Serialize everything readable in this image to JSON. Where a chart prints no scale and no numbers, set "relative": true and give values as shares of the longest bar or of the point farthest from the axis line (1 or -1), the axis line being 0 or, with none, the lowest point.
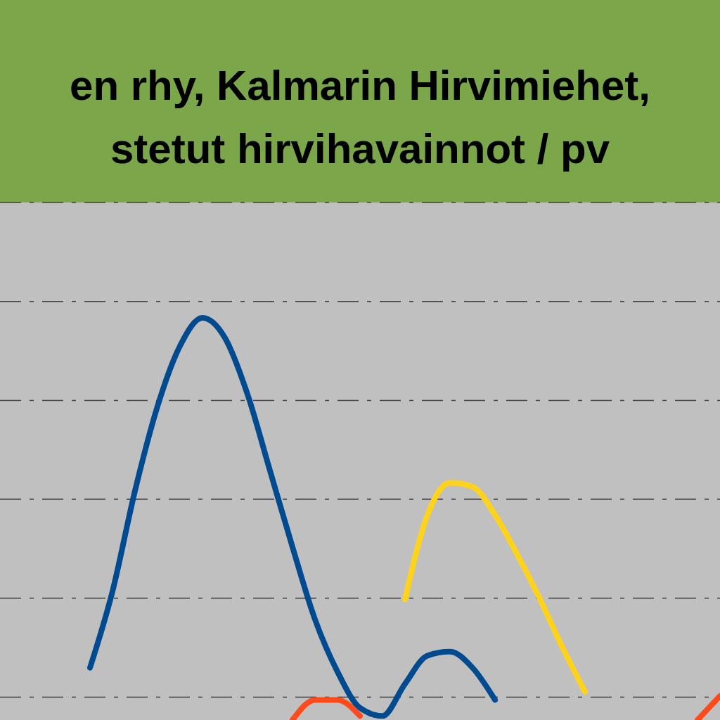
{
  "chart_data": {
    "type": "line",
    "title": "en rhy, Kalmarin Hirvimiehet,\nstetut hirvihavainnot / pv",
    "relative": true,
    "grid": "y",
    "categories": [
      null,
      null,
      null,
      null,
      null,
      null,
      null,
      null,
      null,
      null,
      null,
      null,
      null,
      null,
      null,
      null,
      null,
      null,
      null,
      null,
      null,
      null,
      null,
      null,
      null,
      null,
      null,
      null,
      null,
      null,
      null,
      null,
      null
    ],
    "series": [
      {
        "color": "#004a8f",
        "values": [
          null,
          null,
          null,
          null,
          0.13,
          0.32,
          0.57,
          0.78,
          0.93,
          1.0,
          0.95,
          0.81,
          0.62,
          0.43,
          0.25,
          0.12,
          0.03,
          0.01,
          0.09,
          0.16,
          0.17,
          0.13,
          0.05,
          null,
          null,
          null,
          null,
          null,
          null,
          null,
          null,
          null,
          null
        ]
      },
      {
        "color": "#ffd21c",
        "values": [
          null,
          null,
          null,
          null,
          null,
          null,
          null,
          null,
          null,
          null,
          null,
          null,
          null,
          null,
          null,
          null,
          null,
          null,
          0.3,
          0.51,
          0.59,
          0.58,
          0.51,
          0.41,
          0.3,
          0.18,
          0.07,
          null,
          null,
          null,
          null,
          null,
          null
        ]
      },
      {
        "color": "#ff4a1c",
        "values": [
          null,
          null,
          null,
          null,
          null,
          null,
          null,
          null,
          null,
          null,
          null,
          null,
          null,
          0.0,
          0.05,
          0.05,
          0.01,
          null,
          null,
          null,
          null,
          null,
          null,
          null,
          null,
          null,
          null,
          null,
          null,
          null,
          null,
          0.0,
          0.06
        ]
      }
    ]
  }
}
